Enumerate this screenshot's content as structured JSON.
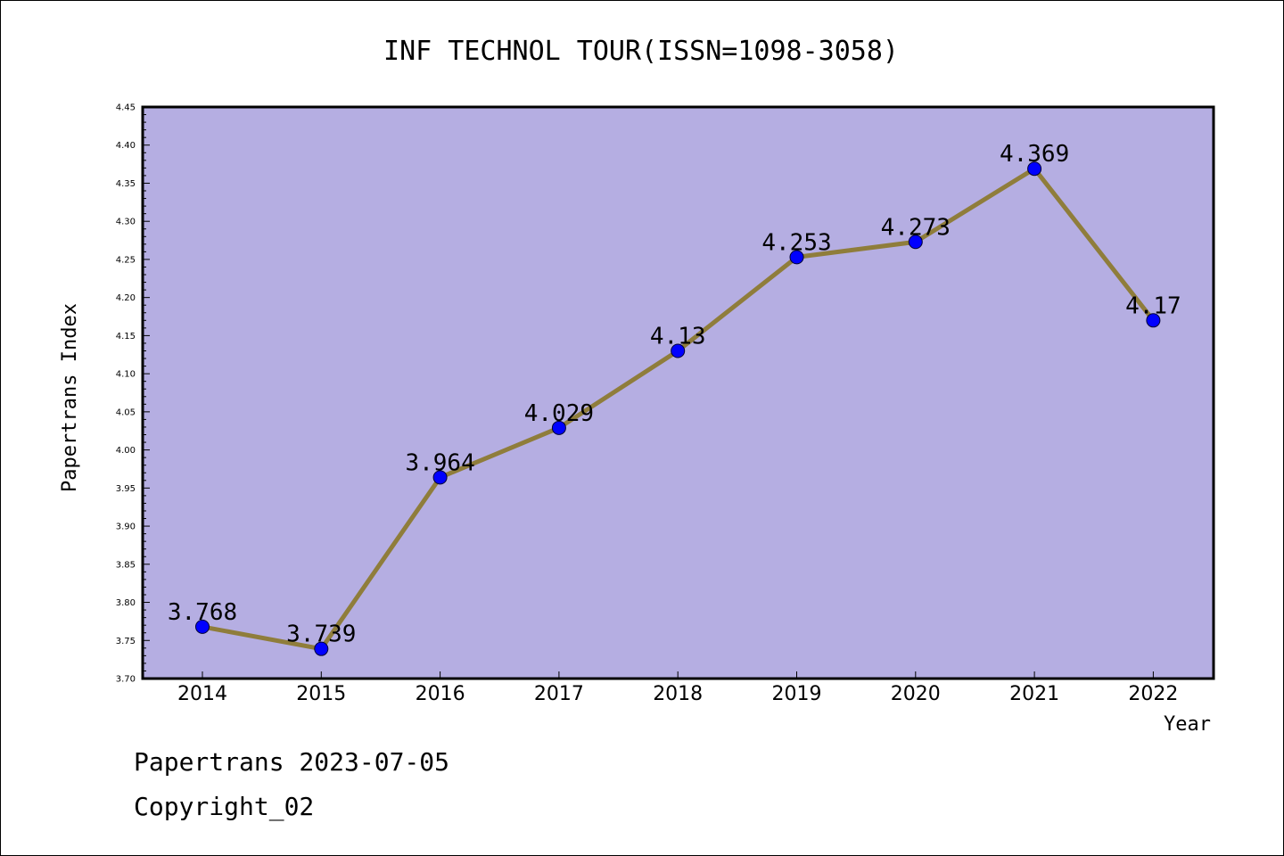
{
  "chart_data": {
    "type": "line",
    "title": "INF TECHNOL TOUR(ISSN=1098-3058)",
    "xlabel": "Year",
    "ylabel": "Papertrans Index",
    "categories": [
      "2014",
      "2015",
      "2016",
      "2017",
      "2018",
      "2019",
      "2020",
      "2021",
      "2022"
    ],
    "series": [
      {
        "values": [
          3.768,
          3.739,
          3.964,
          4.029,
          4.13,
          4.253,
          4.273,
          4.369,
          4.17
        ],
        "labels": [
          "3.768",
          "3.739",
          "3.964",
          "4.029",
          "4.13",
          "4.253",
          "4.273",
          "4.369",
          "4.17"
        ]
      }
    ],
    "ylim": [
      3.7,
      4.45
    ],
    "yticks": [
      "3.70",
      "3.75",
      "3.80",
      "3.85",
      "3.90",
      "3.95",
      "4.00",
      "4.05",
      "4.10",
      "4.15",
      "4.20",
      "4.25",
      "4.30",
      "4.35",
      "4.40",
      "4.45"
    ],
    "grid": false,
    "colors": {
      "plot_background": "#b5aee2",
      "line": "#8f7d3b",
      "marker": "#0000ff"
    }
  },
  "footer": {
    "line1": "Papertrans 2023-07-05",
    "line2": "Copyright_02"
  }
}
